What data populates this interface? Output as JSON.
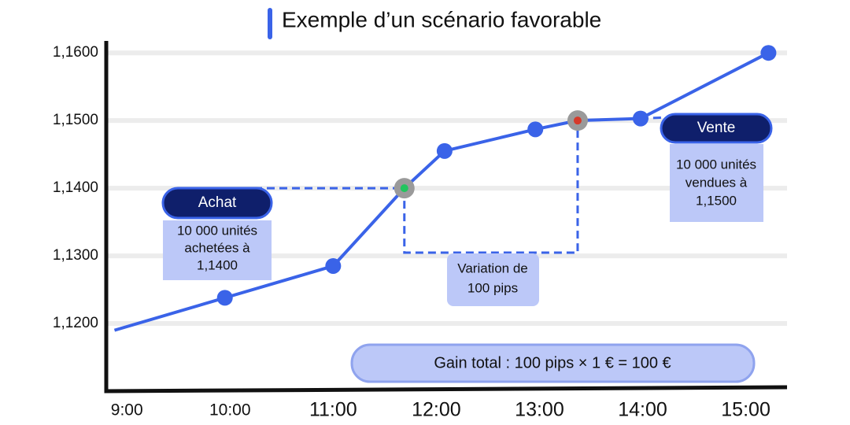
{
  "chart_data": {
    "type": "line",
    "title": "Exemple d’un scénario favorable",
    "x": [
      8.88,
      9.95,
      11.0,
      11.69,
      12.08,
      12.96,
      13.37,
      13.98,
      15.22
    ],
    "values": [
      1.119,
      1.1238,
      1.1285,
      1.14,
      1.1455,
      1.1487,
      1.15,
      1.1503,
      1.16
    ],
    "color": "#3a63e8",
    "xlim": [
      8.8,
      15.4
    ],
    "xticks": [
      {
        "value": 9,
        "label": "9:00"
      },
      {
        "value": 10,
        "label": "10:00"
      },
      {
        "value": 11,
        "label": "11:00"
      },
      {
        "value": 12,
        "label": "12:00"
      },
      {
        "value": 13,
        "label": "13:00"
      },
      {
        "value": 14,
        "label": "14:00"
      },
      {
        "value": 15,
        "label": "15:00"
      }
    ],
    "ylim": [
      1.11,
      1.162
    ],
    "yticks": [
      {
        "value": 1.12,
        "label": "1,1200"
      },
      {
        "value": 1.13,
        "label": "1,1300"
      },
      {
        "value": 1.14,
        "label": "1,1400"
      },
      {
        "value": 1.15,
        "label": "1,1500"
      },
      {
        "value": 1.16,
        "label": "1,1600"
      }
    ],
    "grid": true,
    "annotations": {
      "buy": {
        "label": "Achat",
        "lines": [
          "10 000 unités",
          "achetées à",
          "1,1400"
        ]
      },
      "sell": {
        "label": "Vente",
        "lines": [
          "10 000 unités",
          "vendues à",
          "1,1500"
        ]
      },
      "variation": [
        "Variation de",
        "100 pips"
      ],
      "gain": "Gain total : 100 pips × 1 € = 100 €"
    }
  }
}
